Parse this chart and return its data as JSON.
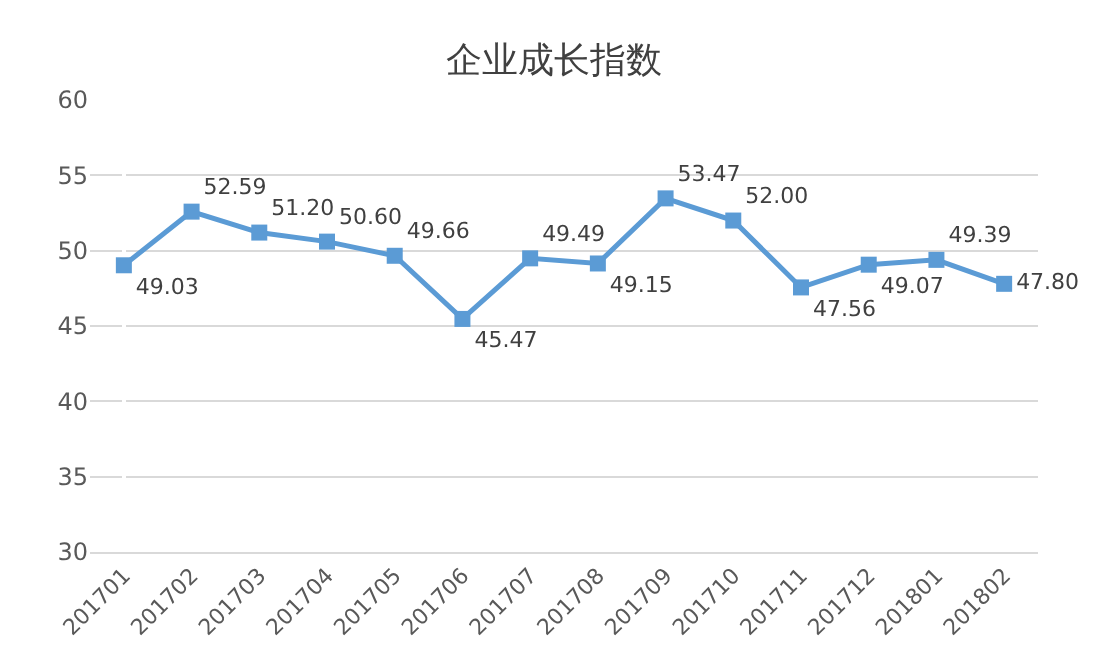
{
  "chart_data": {
    "type": "line",
    "title": "企业成长指数",
    "categories": [
      "201701",
      "201702",
      "201703",
      "201704",
      "201705",
      "201706",
      "201707",
      "201708",
      "201709",
      "201710",
      "201711",
      "201712",
      "201801",
      "201802"
    ],
    "series": [
      {
        "color": "#5b9bd5",
        "values": [
          49.03,
          52.59,
          51.2,
          50.6,
          49.66,
          45.47,
          49.49,
          49.15,
          53.47,
          52.0,
          47.56,
          49.07,
          49.39,
          47.8
        ],
        "value_labels": [
          "49.03",
          "52.59",
          "51.20",
          "50.60",
          "49.66",
          "45.47",
          "49.49",
          "49.15",
          "53.47",
          "52.00",
          "47.56",
          "49.07",
          "49.39",
          "47.80"
        ]
      }
    ],
    "ylim": [
      30,
      60
    ],
    "yticks": [
      30,
      35,
      40,
      45,
      50,
      55,
      60
    ],
    "grid": "y",
    "marker": "square",
    "line_style": "solid"
  }
}
